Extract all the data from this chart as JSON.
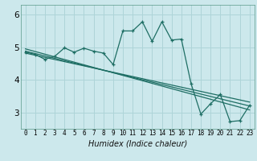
{
  "xlabel": "Humidex (Indice chaleur)",
  "background_color": "#cce8ec",
  "grid_color": "#aed4d8",
  "line_color": "#1e6e64",
  "xlim": [
    -0.5,
    23.5
  ],
  "ylim": [
    2.5,
    6.3
  ],
  "xticks": [
    0,
    1,
    2,
    3,
    4,
    5,
    6,
    7,
    8,
    9,
    10,
    11,
    12,
    13,
    14,
    15,
    16,
    17,
    18,
    19,
    20,
    21,
    22,
    23
  ],
  "yticks": [
    3,
    4,
    5,
    6
  ],
  "line1_x": [
    0,
    1,
    2,
    3,
    4,
    5,
    6,
    7,
    8,
    9,
    10,
    11,
    12,
    13,
    14,
    15,
    16,
    17,
    18,
    19,
    20,
    21,
    22,
    23
  ],
  "line1_y": [
    4.85,
    4.78,
    4.63,
    4.72,
    4.98,
    4.85,
    4.97,
    4.88,
    4.82,
    4.47,
    5.5,
    5.5,
    5.78,
    5.18,
    5.78,
    5.22,
    5.25,
    3.88,
    2.95,
    3.27,
    3.55,
    2.72,
    2.75,
    3.22
  ],
  "line2_x": [
    0,
    23
  ],
  "line2_y": [
    4.88,
    3.2
  ],
  "line3_x": [
    0,
    23
  ],
  "line3_y": [
    4.82,
    3.32
  ],
  "line4_x": [
    0,
    23
  ],
  "line4_y": [
    4.95,
    3.08
  ]
}
